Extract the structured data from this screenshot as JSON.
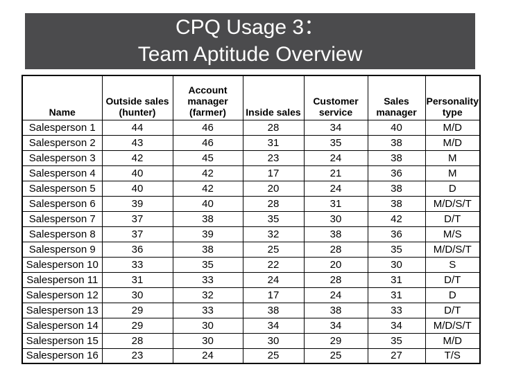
{
  "title": {
    "line1": "CPQ Usage 3：",
    "line2": "Team Aptitude Overview"
  },
  "colors": {
    "title_background": "#4b4b4d",
    "title_text": "#ffffff",
    "good_cell_background": "#c6efce",
    "good_cell_text": "#217a36",
    "neutral_cell_background": "#fbe28c",
    "neutral_cell_text": "#9e7518",
    "table_border": "#000000"
  },
  "table": {
    "headers": [
      {
        "id": "name",
        "lines": [
          "Name"
        ]
      },
      {
        "id": "outside-sales",
        "lines": [
          "Outside sales",
          "(hunter)"
        ]
      },
      {
        "id": "account-manager",
        "lines": [
          "Account",
          "manager",
          "(farmer)"
        ]
      },
      {
        "id": "inside-sales",
        "lines": [
          "Inside sales"
        ]
      },
      {
        "id": "customer-service",
        "lines": [
          "Customer",
          "service"
        ]
      },
      {
        "id": "sales-manager",
        "lines": [
          "Sales",
          "manager"
        ]
      },
      {
        "id": "personality-type",
        "lines": [
          "Personality",
          "type"
        ]
      }
    ],
    "rows": [
      {
        "name": "Salesperson 1",
        "scores": [
          {
            "v": 44,
            "hl": "green"
          },
          {
            "v": 46,
            "hl": "green"
          },
          {
            "v": 28,
            "hl": "none"
          },
          {
            "v": 34,
            "hl": "yellow"
          },
          {
            "v": 40,
            "hl": "green"
          }
        ],
        "personality": "M/D"
      },
      {
        "name": "Salesperson 2",
        "scores": [
          {
            "v": 43,
            "hl": "green"
          },
          {
            "v": 46,
            "hl": "green"
          },
          {
            "v": 31,
            "hl": "yellow"
          },
          {
            "v": 35,
            "hl": "yellow"
          },
          {
            "v": 38,
            "hl": "yellow"
          }
        ],
        "personality": "M/D"
      },
      {
        "name": "Salesperson 3",
        "scores": [
          {
            "v": 42,
            "hl": "green"
          },
          {
            "v": 45,
            "hl": "green"
          },
          {
            "v": 23,
            "hl": "none"
          },
          {
            "v": 24,
            "hl": "none"
          },
          {
            "v": 38,
            "hl": "yellow"
          }
        ],
        "personality": "M"
      },
      {
        "name": "Salesperson 4",
        "scores": [
          {
            "v": 40,
            "hl": "green"
          },
          {
            "v": 42,
            "hl": "green"
          },
          {
            "v": 17,
            "hl": "none"
          },
          {
            "v": 21,
            "hl": "none"
          },
          {
            "v": 36,
            "hl": "yellow"
          }
        ],
        "personality": "M"
      },
      {
        "name": "Salesperson 5",
        "scores": [
          {
            "v": 40,
            "hl": "green"
          },
          {
            "v": 42,
            "hl": "green"
          },
          {
            "v": 20,
            "hl": "none"
          },
          {
            "v": 24,
            "hl": "none"
          },
          {
            "v": 38,
            "hl": "yellow"
          }
        ],
        "personality": "D"
      },
      {
        "name": "Salesperson 6",
        "scores": [
          {
            "v": 39,
            "hl": "yellow"
          },
          {
            "v": 40,
            "hl": "green"
          },
          {
            "v": 28,
            "hl": "none"
          },
          {
            "v": 31,
            "hl": "yellow"
          },
          {
            "v": 38,
            "hl": "yellow"
          }
        ],
        "personality": "M/D/S/T"
      },
      {
        "name": "Salesperson 7",
        "scores": [
          {
            "v": 37,
            "hl": "yellow"
          },
          {
            "v": 38,
            "hl": "yellow"
          },
          {
            "v": 35,
            "hl": "yellow"
          },
          {
            "v": 30,
            "hl": "yellow"
          },
          {
            "v": 42,
            "hl": "green"
          }
        ],
        "personality": "D/T"
      },
      {
        "name": "Salesperson 8",
        "scores": [
          {
            "v": 37,
            "hl": "yellow"
          },
          {
            "v": 39,
            "hl": "yellow"
          },
          {
            "v": 32,
            "hl": "yellow"
          },
          {
            "v": 38,
            "hl": "yellow"
          },
          {
            "v": 36,
            "hl": "yellow"
          }
        ],
        "personality": "M/S"
      },
      {
        "name": "Salesperson 9",
        "scores": [
          {
            "v": 36,
            "hl": "yellow"
          },
          {
            "v": 38,
            "hl": "yellow"
          },
          {
            "v": 25,
            "hl": "none"
          },
          {
            "v": 28,
            "hl": "none"
          },
          {
            "v": 35,
            "hl": "yellow"
          }
        ],
        "personality": "M/D/S/T"
      },
      {
        "name": "Salesperson 10",
        "scores": [
          {
            "v": 33,
            "hl": "yellow"
          },
          {
            "v": 35,
            "hl": "yellow"
          },
          {
            "v": 22,
            "hl": "none"
          },
          {
            "v": 20,
            "hl": "none"
          },
          {
            "v": 30,
            "hl": "yellow"
          }
        ],
        "personality": "S"
      },
      {
        "name": "Salesperson 11",
        "scores": [
          {
            "v": 31,
            "hl": "yellow"
          },
          {
            "v": 33,
            "hl": "yellow"
          },
          {
            "v": 24,
            "hl": "none"
          },
          {
            "v": 28,
            "hl": "none"
          },
          {
            "v": 31,
            "hl": "yellow"
          }
        ],
        "personality": "D/T"
      },
      {
        "name": "Salesperson 12",
        "scores": [
          {
            "v": 30,
            "hl": "yellow"
          },
          {
            "v": 32,
            "hl": "yellow"
          },
          {
            "v": 17,
            "hl": "none"
          },
          {
            "v": 24,
            "hl": "none"
          },
          {
            "v": 31,
            "hl": "yellow"
          }
        ],
        "personality": "D"
      },
      {
        "name": "Salesperson 13",
        "scores": [
          {
            "v": 29,
            "hl": "none"
          },
          {
            "v": 33,
            "hl": "yellow"
          },
          {
            "v": 38,
            "hl": "yellow"
          },
          {
            "v": 38,
            "hl": "yellow"
          },
          {
            "v": 33,
            "hl": "yellow"
          }
        ],
        "personality": "D/T"
      },
      {
        "name": "Salesperson 14",
        "scores": [
          {
            "v": 29,
            "hl": "none"
          },
          {
            "v": 30,
            "hl": "yellow"
          },
          {
            "v": 34,
            "hl": "yellow"
          },
          {
            "v": 34,
            "hl": "yellow"
          },
          {
            "v": 34,
            "hl": "yellow"
          }
        ],
        "personality": "M/D/S/T"
      },
      {
        "name": "Salesperson 15",
        "scores": [
          {
            "v": 28,
            "hl": "none"
          },
          {
            "v": 30,
            "hl": "yellow"
          },
          {
            "v": 30,
            "hl": "yellow"
          },
          {
            "v": 29,
            "hl": "none"
          },
          {
            "v": 35,
            "hl": "yellow"
          }
        ],
        "personality": "M/D"
      },
      {
        "name": "Salesperson 16",
        "scores": [
          {
            "v": 23,
            "hl": "none"
          },
          {
            "v": 24,
            "hl": "none"
          },
          {
            "v": 25,
            "hl": "none"
          },
          {
            "v": 25,
            "hl": "none"
          },
          {
            "v": 27,
            "hl": "none"
          }
        ],
        "personality": "T/S"
      }
    ]
  }
}
